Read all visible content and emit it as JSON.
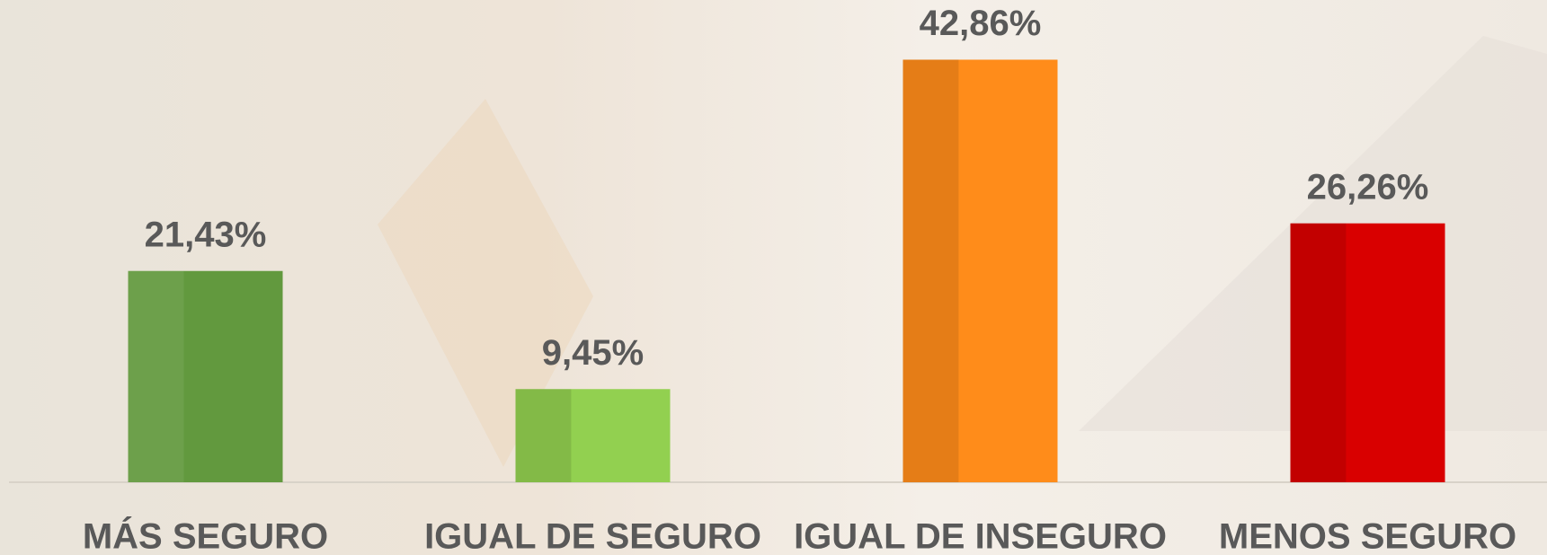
{
  "chart_data": {
    "type": "bar",
    "categories": [
      "MÁS SEGURO",
      "IGUAL DE SEGURO",
      "IGUAL DE INSEGURO",
      "MENOS SEGURO"
    ],
    "values": [
      21.43,
      9.45,
      42.86,
      26.26
    ],
    "value_labels": [
      "21,43%",
      "9,45%",
      "42,86%",
      "26,26%"
    ],
    "colors": [
      "#62993e",
      "#92d050",
      "#ff8c1a",
      "#d90000"
    ],
    "ylim": [
      0,
      46
    ]
  }
}
